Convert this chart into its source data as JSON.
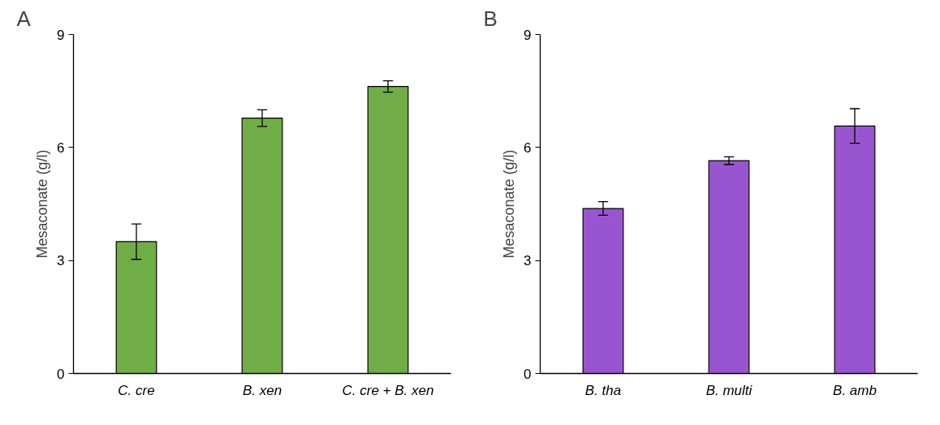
{
  "chart_data": [
    {
      "type": "bar",
      "title": "A",
      "ylabel": "Mesaconate (g/l)",
      "categories": [
        "C. cre",
        "B. xen",
        "C. cre + B. xen"
      ],
      "values": [
        3.5,
        6.78,
        7.62
      ],
      "errors": [
        0.47,
        0.22,
        0.15
      ],
      "color": "#70ad47",
      "ylim": [
        0,
        9
      ],
      "yticks": [
        0,
        3,
        6,
        9
      ],
      "grid": false
    },
    {
      "type": "bar",
      "title": "B",
      "ylabel": "Mesaconate (g/l)",
      "categories": [
        "B. tha",
        "B. multi",
        "B. amb"
      ],
      "values": [
        4.38,
        5.65,
        6.57
      ],
      "errors": [
        0.18,
        0.1,
        0.46
      ],
      "color": "#9955d0",
      "ylim": [
        0,
        9
      ],
      "yticks": [
        0,
        3,
        6,
        9
      ],
      "grid": false
    }
  ]
}
